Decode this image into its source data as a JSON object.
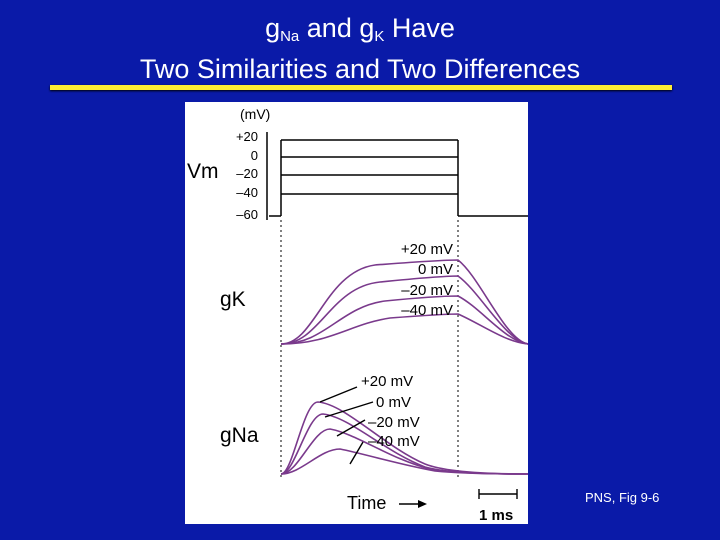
{
  "slide": {
    "title_line1": {
      "g1": "g",
      "sub1": "Na",
      "mid": " and g",
      "sub2": "K",
      "end": " Have"
    },
    "title_line2": "Two Similarities and Two Differences",
    "credit": "PNS, Fig 9-6",
    "colors": {
      "background": "#0a1aa8",
      "rule": "#ffee33",
      "trace": "#7a3a8c"
    }
  },
  "figure": {
    "vm_unit": "(mV)",
    "vm_label": "Vm",
    "vm_ticks": [
      "+20",
      "0",
      "–20",
      "–40",
      "–60"
    ],
    "gk_label": "gK",
    "gna_label": "gNa",
    "gk_traces": [
      "+20 mV",
      "0 mV",
      "–20 mV",
      "–40 mV"
    ],
    "gna_traces": [
      "+20 mV",
      "0 mV",
      "–20 mV",
      "–40 mV"
    ],
    "time_label": "Time",
    "scale_label": "1 ms"
  }
}
